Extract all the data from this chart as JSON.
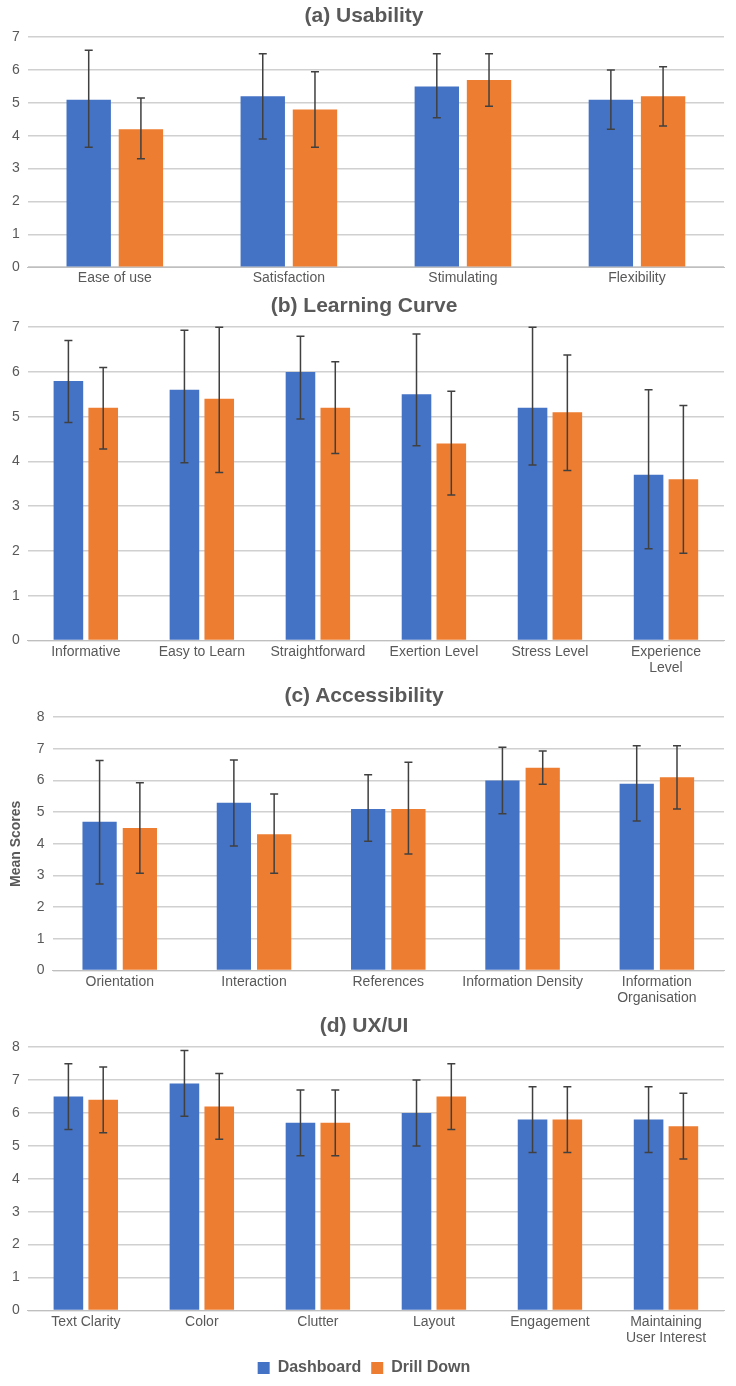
{
  "chart_data": [
    {
      "type": "bar",
      "title": "(a) Usability",
      "categories": [
        "Ease of use",
        "Satisfaction",
        "Stimulating",
        "Flexibility"
      ],
      "ylim": [
        0,
        7
      ],
      "yticks": [
        0,
        1,
        2,
        3,
        4,
        5,
        6,
        7
      ],
      "grid": "y",
      "legend": false,
      "series": [
        {
          "color": "#4472c4",
          "values": [
            5.1,
            5.2,
            5.5,
            5.1
          ],
          "errors": [
            [
              3.65,
              6.6
            ],
            [
              3.9,
              6.5
            ],
            [
              4.55,
              6.5
            ],
            [
              4.2,
              6.0
            ]
          ]
        },
        {
          "color": "#ed7d31",
          "values": [
            4.2,
            4.8,
            5.7,
            5.2
          ],
          "errors": [
            [
              3.3,
              5.15
            ],
            [
              3.65,
              5.95
            ],
            [
              4.9,
              6.5
            ],
            [
              4.3,
              6.1
            ]
          ]
        }
      ]
    },
    {
      "type": "bar",
      "title": "(b) Learning Curve",
      "categories": [
        "Informative",
        "Easy to Learn",
        "Straightforward",
        "Exertion Level",
        "Stress Level",
        "Experience Level"
      ],
      "ylim": [
        0,
        7
      ],
      "yticks": [
        0,
        1,
        2,
        3,
        4,
        5,
        6,
        7
      ],
      "grid": "y",
      "legend": false,
      "series": [
        {
          "color": "#4472c4",
          "values": [
            5.8,
            5.6,
            6.0,
            5.5,
            5.2,
            3.7
          ],
          "errors": [
            [
              4.87,
              6.7
            ],
            [
              3.97,
              6.93
            ],
            [
              4.95,
              6.8
            ],
            [
              4.35,
              6.85
            ],
            [
              3.92,
              7.0
            ],
            [
              2.05,
              5.6
            ]
          ]
        },
        {
          "color": "#ed7d31",
          "values": [
            5.2,
            5.4,
            5.2,
            4.4,
            5.1,
            3.6
          ],
          "errors": [
            [
              4.28,
              6.1
            ],
            [
              3.75,
              7.0
            ],
            [
              4.18,
              6.23
            ],
            [
              3.25,
              5.57
            ],
            [
              3.8,
              6.38
            ],
            [
              1.95,
              5.25
            ]
          ]
        }
      ]
    },
    {
      "type": "bar",
      "title": "(c) Accessibility",
      "ylabel": "Mean Scores",
      "categories": [
        "Orientation",
        "Interaction",
        "References",
        "Information Density",
        "Information Organisation"
      ],
      "ylim": [
        0,
        8
      ],
      "yticks": [
        0,
        1,
        2,
        3,
        4,
        5,
        6,
        7,
        8
      ],
      "grid": "y",
      "legend": false,
      "series": [
        {
          "color": "#4472c4",
          "values": [
            4.7,
            5.3,
            5.1,
            6.0,
            5.9
          ],
          "errors": [
            [
              2.73,
              6.63
            ],
            [
              3.93,
              6.65
            ],
            [
              4.08,
              6.18
            ],
            [
              4.95,
              7.05
            ],
            [
              4.72,
              7.1
            ]
          ]
        },
        {
          "color": "#ed7d31",
          "values": [
            4.5,
            4.3,
            5.1,
            6.4,
            6.1
          ],
          "errors": [
            [
              3.07,
              5.93
            ],
            [
              3.07,
              5.57
            ],
            [
              3.68,
              6.58
            ],
            [
              5.88,
              6.93
            ],
            [
              5.1,
              7.1
            ]
          ]
        }
      ]
    },
    {
      "type": "bar",
      "title": "(d) UX/UI",
      "categories": [
        "Text Clarity",
        "Color",
        "Clutter",
        "Layout",
        "Engagement",
        "Maintaining User Interest"
      ],
      "ylim": [
        0,
        8
      ],
      "yticks": [
        0,
        1,
        2,
        3,
        4,
        5,
        6,
        7,
        8
      ],
      "grid": "y",
      "legend": "bottom",
      "series": [
        {
          "name": "Dashboard",
          "color": "#4472c4",
          "values": [
            6.5,
            6.9,
            5.7,
            6.0,
            5.8,
            5.8
          ],
          "errors": [
            1.0,
            1.0,
            1.0,
            1.0,
            1.0,
            1.0
          ]
        },
        {
          "name": "Drill Down",
          "color": "#ed7d31",
          "values": [
            6.4,
            6.2,
            5.7,
            6.5,
            5.8,
            5.6
          ],
          "errors": [
            1.0,
            1.0,
            1.0,
            1.0,
            1.0,
            1.0
          ]
        }
      ]
    }
  ]
}
